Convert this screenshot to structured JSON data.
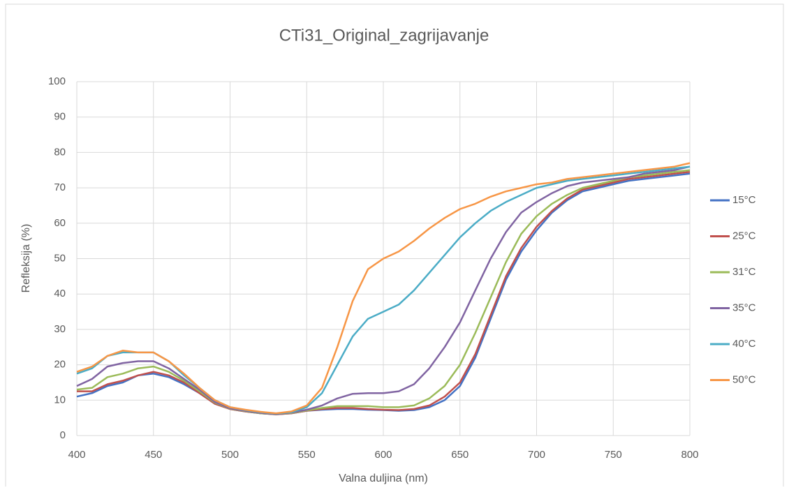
{
  "chart_data": {
    "type": "line",
    "title": "CTi31_Original_zagrijavanje",
    "x_label": "Valna duljina (nm)",
    "y_label": "Refleksija (%)",
    "x": [
      400,
      410,
      420,
      430,
      440,
      450,
      460,
      470,
      480,
      490,
      500,
      510,
      520,
      530,
      540,
      550,
      560,
      570,
      580,
      590,
      600,
      610,
      620,
      630,
      640,
      650,
      660,
      670,
      680,
      690,
      700,
      710,
      720,
      730,
      740,
      750,
      760,
      770,
      780,
      790,
      800
    ],
    "series": [
      {
        "name": "15°C",
        "color": "#4472c4",
        "values": [
          11,
          12,
          14,
          15,
          17,
          17.5,
          16.5,
          14.5,
          12,
          9,
          7.5,
          6.8,
          6.3,
          6,
          6.3,
          7,
          7.3,
          7.5,
          7.5,
          7.3,
          7.2,
          7,
          7.2,
          8,
          10,
          14,
          22,
          33,
          44,
          52,
          58,
          63,
          66.5,
          69,
          70,
          71,
          72,
          72.5,
          73,
          73.5,
          74
        ]
      },
      {
        "name": "25°C",
        "color": "#c0504d",
        "values": [
          12.5,
          12.5,
          14.5,
          15.5,
          17,
          18,
          17,
          15,
          12,
          9,
          7.5,
          6.8,
          6.3,
          6,
          6.3,
          7,
          7.5,
          7.8,
          7.8,
          7.5,
          7.3,
          7.2,
          7.5,
          8.5,
          11,
          15,
          23,
          34,
          45,
          53,
          59,
          63.5,
          67,
          69.5,
          70.5,
          71.5,
          72.5,
          73,
          73.5,
          74,
          74.5
        ]
      },
      {
        "name": "31°C",
        "color": "#9bbb59",
        "values": [
          13,
          13.5,
          16.5,
          17.5,
          19,
          19.5,
          18,
          15.5,
          12.5,
          9.3,
          7.6,
          6.9,
          6.3,
          6.1,
          6.4,
          7.1,
          7.8,
          8.3,
          8.3,
          8.3,
          8,
          8,
          8.5,
          10.5,
          14,
          20,
          29,
          39,
          49,
          57,
          62,
          65.5,
          68,
          70,
          71,
          72,
          73,
          73.5,
          74,
          74.5,
          75
        ]
      },
      {
        "name": "35°C",
        "color": "#8064a2",
        "values": [
          14,
          16,
          19.5,
          20.5,
          21,
          21,
          19,
          16,
          13,
          9.5,
          7.7,
          7,
          6.4,
          6.1,
          6.5,
          7.3,
          8.5,
          10.5,
          11.8,
          12,
          12,
          12.5,
          14.5,
          19,
          25,
          32,
          41,
          50,
          57.5,
          63,
          66,
          68.5,
          70.5,
          71.5,
          72,
          72.5,
          73,
          74,
          74.5,
          75,
          76
        ]
      },
      {
        "name": "40°C",
        "color": "#4bacc6",
        "values": [
          17.5,
          19,
          22.5,
          23.5,
          23.5,
          23.5,
          21,
          17,
          13.5,
          10,
          8,
          7.2,
          6.6,
          6.2,
          6.6,
          8,
          12,
          20,
          28,
          33,
          35,
          37,
          41,
          46,
          51,
          56,
          60,
          63.5,
          66,
          68,
          70,
          71,
          72,
          72.5,
          73,
          73.5,
          74,
          74.5,
          75,
          75.5,
          76
        ]
      },
      {
        "name": "50°C",
        "color": "#f79646",
        "values": [
          18,
          19.5,
          22.5,
          24,
          23.5,
          23.5,
          21,
          17.5,
          13.5,
          10,
          8,
          7.3,
          6.7,
          6.3,
          6.8,
          8.5,
          13.5,
          25,
          38,
          47,
          50,
          52,
          55,
          58.5,
          61.5,
          64,
          65.5,
          67.5,
          69,
          70,
          71,
          71.5,
          72.5,
          73,
          73.5,
          74,
          74.5,
          75,
          75.5,
          76,
          77
        ]
      }
    ],
    "xlim": [
      400,
      800
    ],
    "xticks": [
      400,
      450,
      500,
      550,
      600,
      650,
      700,
      750,
      800
    ],
    "ylim": [
      0,
      100
    ],
    "yticks": [
      0,
      10,
      20,
      30,
      40,
      50,
      60,
      70,
      80,
      90,
      100
    ],
    "grid": true,
    "legend": "right"
  }
}
